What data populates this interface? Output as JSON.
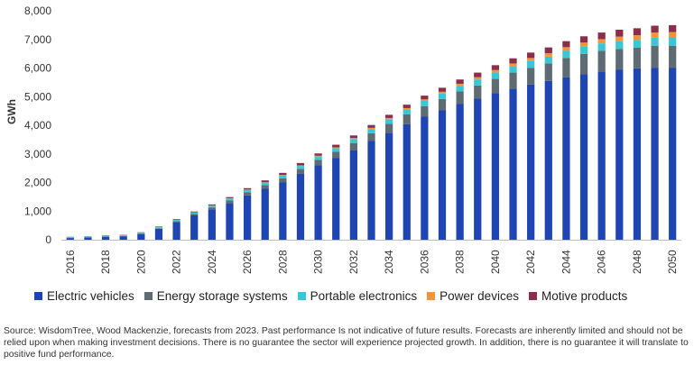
{
  "chart_data": {
    "type": "bar",
    "stacked": true,
    "ylabel": "GWh",
    "ylim": [
      0,
      8000
    ],
    "yticks": [
      0,
      1000,
      2000,
      3000,
      4000,
      5000,
      6000,
      7000,
      8000
    ],
    "ytick_labels": [
      "0",
      "1,000",
      "2,000",
      "3,000",
      "4,000",
      "5,000",
      "6,000",
      "7,000",
      "8,000"
    ],
    "grid": false,
    "legend_position": "bottom",
    "categories": [
      "2016",
      "2017",
      "2018",
      "2019",
      "2020",
      "2021",
      "2022",
      "2023",
      "2024",
      "2025",
      "2026",
      "2027",
      "2028",
      "2029",
      "2030",
      "2031",
      "2032",
      "2033",
      "2034",
      "2035",
      "2036",
      "2037",
      "2038",
      "2039",
      "2040",
      "2041",
      "2042",
      "2043",
      "2044",
      "2045",
      "2046",
      "2047",
      "2048",
      "2049",
      "2050"
    ],
    "xtick_labels": [
      "2016",
      "2018",
      "2020",
      "2022",
      "2024",
      "2026",
      "2028",
      "2030",
      "2032",
      "2034",
      "2036",
      "2038",
      "2040",
      "2042",
      "2044",
      "2046",
      "2048",
      "2050"
    ],
    "series": [
      {
        "name": "Electric vehicles",
        "color": "#1f45b3",
        "values": [
          60,
          80,
          100,
          120,
          190,
          380,
          620,
          850,
          1060,
          1280,
          1550,
          1780,
          2000,
          2300,
          2600,
          2850,
          3130,
          3450,
          3740,
          4040,
          4300,
          4520,
          4740,
          4930,
          5120,
          5280,
          5420,
          5550,
          5680,
          5790,
          5880,
          5950,
          5990,
          6000,
          6000
        ]
      },
      {
        "name": "Energy storage systems",
        "color": "#5f6b73",
        "values": [
          5,
          5,
          10,
          10,
          15,
          20,
          30,
          50,
          70,
          90,
          110,
          130,
          150,
          170,
          190,
          220,
          250,
          270,
          310,
          340,
          370,
          400,
          440,
          460,
          500,
          560,
          590,
          610,
          670,
          700,
          720,
          720,
          720,
          780,
          780
        ]
      },
      {
        "name": "Portable electronics",
        "color": "#37c7d6",
        "values": [
          30,
          30,
          30,
          30,
          35,
          35,
          40,
          50,
          60,
          70,
          80,
          90,
          100,
          110,
          120,
          130,
          140,
          150,
          160,
          170,
          180,
          190,
          200,
          210,
          220,
          220,
          230,
          240,
          250,
          260,
          260,
          270,
          270,
          280,
          290
        ]
      },
      {
        "name": "Power devices",
        "color": "#f2943a",
        "values": [
          3,
          3,
          3,
          3,
          4,
          5,
          5,
          6,
          8,
          10,
          12,
          14,
          16,
          20,
          25,
          30,
          35,
          40,
          45,
          50,
          55,
          60,
          70,
          80,
          90,
          100,
          110,
          120,
          130,
          140,
          150,
          160,
          170,
          180,
          190
        ]
      },
      {
        "name": "Motive products",
        "color": "#8a2e4a",
        "values": [
          5,
          5,
          10,
          10,
          15,
          20,
          25,
          30,
          35,
          40,
          50,
          60,
          70,
          80,
          80,
          90,
          90,
          100,
          110,
          120,
          130,
          140,
          150,
          160,
          170,
          180,
          190,
          200,
          210,
          220,
          230,
          240,
          240,
          240,
          240
        ]
      }
    ]
  },
  "source_note": "Source: WisdomTree, Wood Mackenzie, forecasts from 2023. Past performance Is not indicative of future results. Forecasts are inherently limited and should not be relied upon when making investment decisions.  There is no guarantee the sector will experience projected growth. In addition, there is no guarantee it will translate to positive fund performance."
}
